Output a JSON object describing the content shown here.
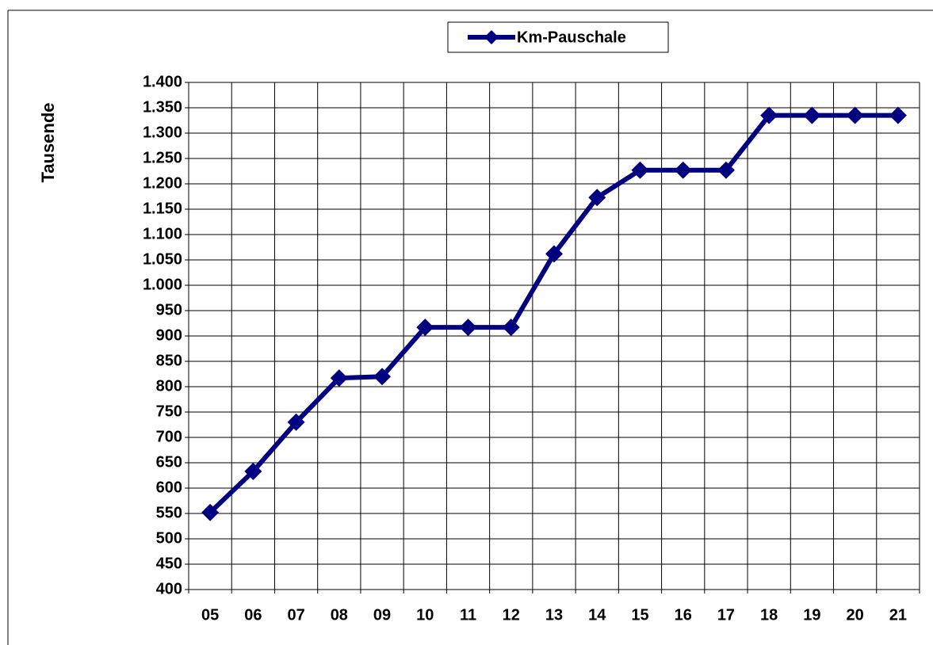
{
  "chart_data": {
    "type": "line",
    "y_label": "Tausende",
    "categories": [
      "05",
      "06",
      "07",
      "08",
      "09",
      "10",
      "11",
      "12",
      "13",
      "14",
      "15",
      "16",
      "17",
      "18",
      "19",
      "20",
      "21"
    ],
    "series": [
      {
        "name": "Km-Pauschale",
        "color": "#000080",
        "values": [
          552,
          633,
          730,
          817,
          820,
          917,
          917,
          917,
          1062,
          1173,
          1227,
          1227,
          1227,
          1335,
          1335,
          1335,
          1335
        ]
      }
    ],
    "ylim": [
      400,
      1400
    ],
    "yticks": [
      400,
      450,
      500,
      550,
      600,
      650,
      700,
      750,
      800,
      850,
      900,
      950,
      {
        "value": 1000,
        "label": "1.000"
      },
      {
        "value": 1050,
        "label": "1.050"
      },
      {
        "value": 1100,
        "label": "1.100"
      },
      {
        "value": 1150,
        "label": "1.150"
      },
      {
        "value": 1200,
        "label": "1.200"
      },
      {
        "value": 1250,
        "label": "1.250"
      },
      {
        "value": 1300,
        "label": "1.300"
      },
      {
        "value": 1350,
        "label": "1.350"
      },
      {
        "value": 1400,
        "label": "1.400"
      }
    ],
    "grid": true,
    "legend": "top"
  }
}
